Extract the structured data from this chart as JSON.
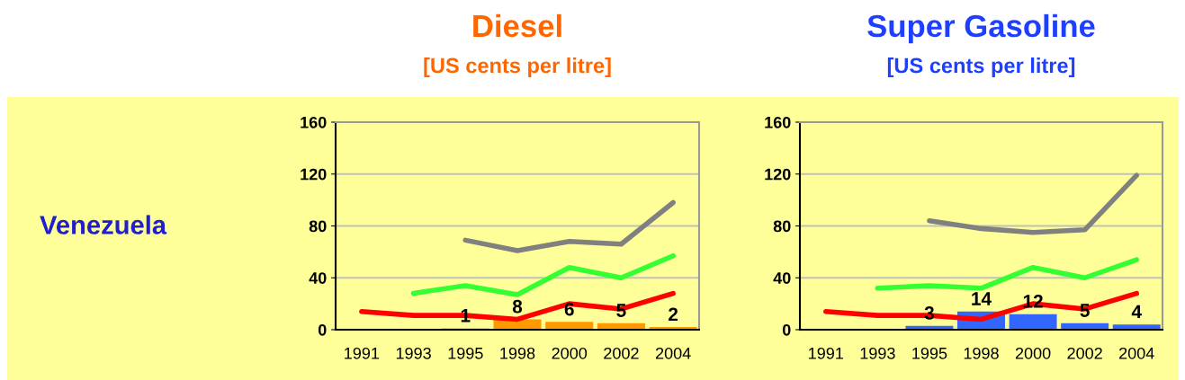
{
  "chart_data": [
    {
      "type": "bar",
      "title": "Diesel",
      "subtitle": "[US cents per litre]",
      "annotations": [
        "Venezuela"
      ],
      "categories": [
        "1991",
        "1993",
        "1995",
        "1998",
        "2000",
        "2002",
        "2004"
      ],
      "ylim": [
        0,
        160
      ],
      "yticks": [
        0,
        40,
        80,
        120,
        160
      ],
      "grid": "y",
      "series": [
        {
          "color": "#ff9900",
          "values": [
            null,
            null,
            1,
            8,
            6,
            5,
            2
          ],
          "value_labels": [
            null,
            null,
            "1",
            "8",
            "6",
            "5",
            "2"
          ]
        },
        {
          "type": "line",
          "color": "#ff0000",
          "values": [
            14,
            11,
            11,
            8,
            20,
            16,
            28
          ]
        },
        {
          "type": "line",
          "color": "#33ff33",
          "values": [
            null,
            28,
            34,
            27,
            48,
            40,
            57
          ]
        },
        {
          "type": "line",
          "color": "#808080",
          "values": [
            null,
            null,
            69,
            61,
            68,
            66,
            98
          ]
        }
      ]
    },
    {
      "type": "bar",
      "title": "Super Gasoline",
      "subtitle": "[US cents per litre]",
      "categories": [
        "1991",
        "1993",
        "1995",
        "1998",
        "2000",
        "2002",
        "2004"
      ],
      "ylim": [
        0,
        160
      ],
      "yticks": [
        0,
        40,
        80,
        120,
        160
      ],
      "grid": "y",
      "series": [
        {
          "color": "#3366ff",
          "values": [
            null,
            null,
            3,
            14,
            12,
            5,
            4
          ],
          "value_labels": [
            null,
            null,
            "3",
            "14",
            "12",
            "5",
            "4"
          ]
        },
        {
          "type": "line",
          "color": "#ff0000",
          "values": [
            14,
            11,
            11,
            8,
            20,
            16,
            28
          ]
        },
        {
          "type": "line",
          "color": "#33ff33",
          "values": [
            null,
            32,
            34,
            32,
            48,
            40,
            54
          ]
        },
        {
          "type": "line",
          "color": "#808080",
          "values": [
            null,
            null,
            84,
            78,
            75,
            77,
            119
          ]
        }
      ]
    }
  ]
}
